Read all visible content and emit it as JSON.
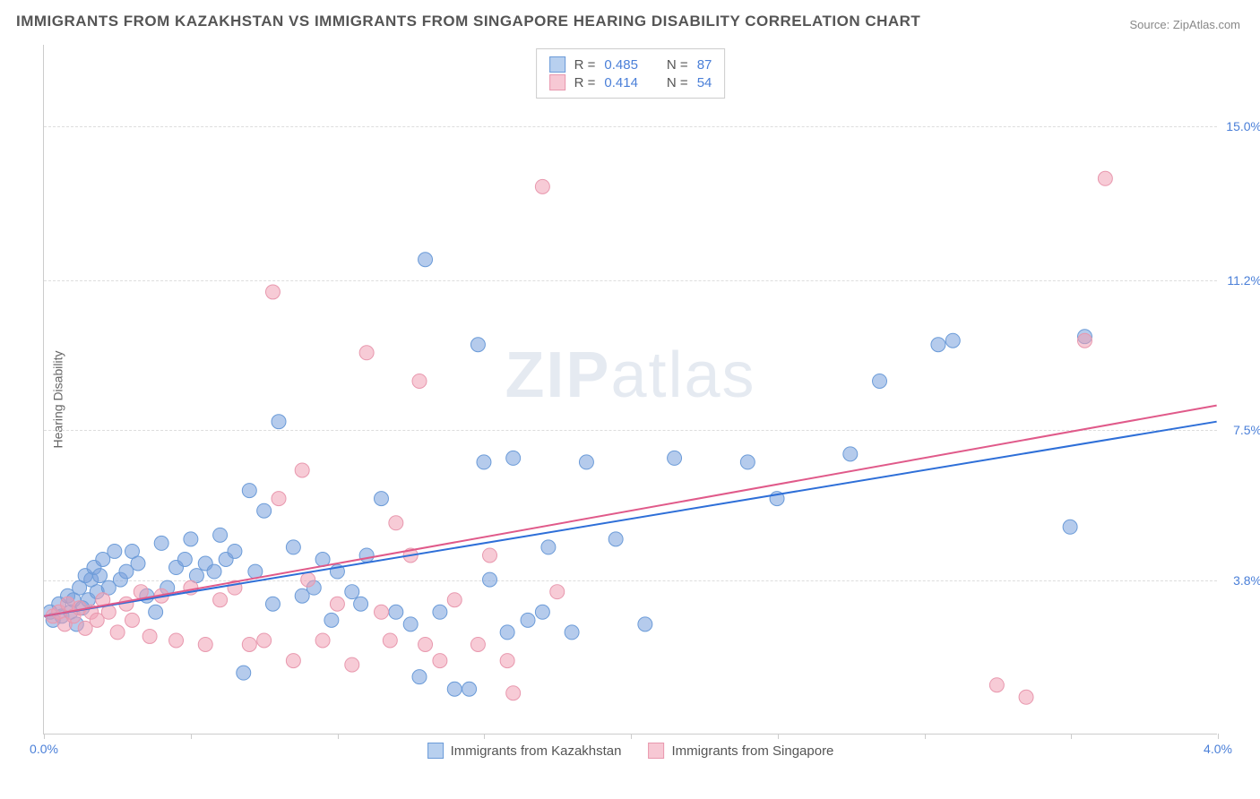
{
  "title": "IMMIGRANTS FROM KAZAKHSTAN VS IMMIGRANTS FROM SINGAPORE HEARING DISABILITY CORRELATION CHART",
  "source": "Source: ZipAtlas.com",
  "watermark_bold": "ZIP",
  "watermark_rest": "atlas",
  "ylabel": "Hearing Disability",
  "xlim": [
    0.0,
    4.0
  ],
  "ylim": [
    0.0,
    17.0
  ],
  "xtick_labels": {
    "left": "0.0%",
    "right": "4.0%"
  },
  "xtick_positions": [
    0.0,
    0.5,
    1.0,
    1.5,
    2.0,
    2.5,
    3.0,
    3.5,
    4.0
  ],
  "ytick_labels": [
    "3.8%",
    "7.5%",
    "11.2%",
    "15.0%"
  ],
  "ytick_values": [
    3.8,
    7.5,
    11.2,
    15.0
  ],
  "grid_color": "#dddddd",
  "axis_color": "#cccccc",
  "series": [
    {
      "name": "Immigrants from Kazakhstan",
      "color_fill": "rgba(120,160,220,0.55)",
      "color_stroke": "#6b9bd8",
      "swatch_fill": "#b8d0ef",
      "swatch_border": "#6b9bd8",
      "line_color": "#2e6fd8",
      "R_label": "R =",
      "R": "0.485",
      "N_label": "N =",
      "N": "87",
      "trend": {
        "x1": 0.0,
        "y1": 2.9,
        "x2": 4.0,
        "y2": 7.7
      },
      "points": [
        [
          0.02,
          3.0
        ],
        [
          0.03,
          2.8
        ],
        [
          0.05,
          3.2
        ],
        [
          0.06,
          2.9
        ],
        [
          0.08,
          3.4
        ],
        [
          0.09,
          3.0
        ],
        [
          0.1,
          3.3
        ],
        [
          0.11,
          2.7
        ],
        [
          0.12,
          3.6
        ],
        [
          0.13,
          3.1
        ],
        [
          0.14,
          3.9
        ],
        [
          0.15,
          3.3
        ],
        [
          0.16,
          3.8
        ],
        [
          0.17,
          4.1
        ],
        [
          0.18,
          3.5
        ],
        [
          0.19,
          3.9
        ],
        [
          0.2,
          4.3
        ],
        [
          0.22,
          3.6
        ],
        [
          0.24,
          4.5
        ],
        [
          0.26,
          3.8
        ],
        [
          0.28,
          4.0
        ],
        [
          0.3,
          4.5
        ],
        [
          0.32,
          4.2
        ],
        [
          0.35,
          3.4
        ],
        [
          0.38,
          3.0
        ],
        [
          0.4,
          4.7
        ],
        [
          0.42,
          3.6
        ],
        [
          0.45,
          4.1
        ],
        [
          0.48,
          4.3
        ],
        [
          0.5,
          4.8
        ],
        [
          0.52,
          3.9
        ],
        [
          0.55,
          4.2
        ],
        [
          0.58,
          4.0
        ],
        [
          0.6,
          4.9
        ],
        [
          0.62,
          4.3
        ],
        [
          0.65,
          4.5
        ],
        [
          0.68,
          1.5
        ],
        [
          0.7,
          6.0
        ],
        [
          0.72,
          4.0
        ],
        [
          0.75,
          5.5
        ],
        [
          0.78,
          3.2
        ],
        [
          0.8,
          7.7
        ],
        [
          0.85,
          4.6
        ],
        [
          0.88,
          3.4
        ],
        [
          0.92,
          3.6
        ],
        [
          0.95,
          4.3
        ],
        [
          0.98,
          2.8
        ],
        [
          1.0,
          4.0
        ],
        [
          1.05,
          3.5
        ],
        [
          1.08,
          3.2
        ],
        [
          1.1,
          4.4
        ],
        [
          1.15,
          5.8
        ],
        [
          1.2,
          3.0
        ],
        [
          1.25,
          2.7
        ],
        [
          1.28,
          1.4
        ],
        [
          1.3,
          11.7
        ],
        [
          1.35,
          3.0
        ],
        [
          1.4,
          1.1
        ],
        [
          1.45,
          1.1
        ],
        [
          1.48,
          9.6
        ],
        [
          1.5,
          6.7
        ],
        [
          1.52,
          3.8
        ],
        [
          1.58,
          2.5
        ],
        [
          1.6,
          6.8
        ],
        [
          1.65,
          2.8
        ],
        [
          1.7,
          3.0
        ],
        [
          1.72,
          4.6
        ],
        [
          1.8,
          2.5
        ],
        [
          1.85,
          6.7
        ],
        [
          1.95,
          4.8
        ],
        [
          2.05,
          2.7
        ],
        [
          2.15,
          6.8
        ],
        [
          2.4,
          6.7
        ],
        [
          2.5,
          5.8
        ],
        [
          2.75,
          6.9
        ],
        [
          2.85,
          8.7
        ],
        [
          3.05,
          9.6
        ],
        [
          3.1,
          9.7
        ],
        [
          3.5,
          5.1
        ],
        [
          3.55,
          9.8
        ]
      ]
    },
    {
      "name": "Immigrants from Singapore",
      "color_fill": "rgba(240,160,180,0.55)",
      "color_stroke": "#e898ae",
      "swatch_fill": "#f7c8d4",
      "swatch_border": "#e898ae",
      "line_color": "#e05a8a",
      "R_label": "R =",
      "R": "0.414",
      "N_label": "N =",
      "N": "54",
      "trend": {
        "x1": 0.0,
        "y1": 2.9,
        "x2": 4.0,
        "y2": 8.1
      },
      "points": [
        [
          0.03,
          2.9
        ],
        [
          0.05,
          3.0
        ],
        [
          0.07,
          2.7
        ],
        [
          0.08,
          3.2
        ],
        [
          0.1,
          2.9
        ],
        [
          0.12,
          3.1
        ],
        [
          0.14,
          2.6
        ],
        [
          0.16,
          3.0
        ],
        [
          0.18,
          2.8
        ],
        [
          0.2,
          3.3
        ],
        [
          0.22,
          3.0
        ],
        [
          0.25,
          2.5
        ],
        [
          0.28,
          3.2
        ],
        [
          0.3,
          2.8
        ],
        [
          0.33,
          3.5
        ],
        [
          0.36,
          2.4
        ],
        [
          0.4,
          3.4
        ],
        [
          0.45,
          2.3
        ],
        [
          0.5,
          3.6
        ],
        [
          0.55,
          2.2
        ],
        [
          0.6,
          3.3
        ],
        [
          0.65,
          3.6
        ],
        [
          0.7,
          2.2
        ],
        [
          0.75,
          2.3
        ],
        [
          0.78,
          10.9
        ],
        [
          0.8,
          5.8
        ],
        [
          0.85,
          1.8
        ],
        [
          0.88,
          6.5
        ],
        [
          0.9,
          3.8
        ],
        [
          0.95,
          2.3
        ],
        [
          1.0,
          3.2
        ],
        [
          1.05,
          1.7
        ],
        [
          1.1,
          9.4
        ],
        [
          1.15,
          3.0
        ],
        [
          1.18,
          2.3
        ],
        [
          1.2,
          5.2
        ],
        [
          1.25,
          4.4
        ],
        [
          1.28,
          8.7
        ],
        [
          1.3,
          2.2
        ],
        [
          1.35,
          1.8
        ],
        [
          1.4,
          3.3
        ],
        [
          1.48,
          2.2
        ],
        [
          1.52,
          4.4
        ],
        [
          1.58,
          1.8
        ],
        [
          1.6,
          1.0
        ],
        [
          1.7,
          13.5
        ],
        [
          1.75,
          3.5
        ],
        [
          3.25,
          1.2
        ],
        [
          3.35,
          0.9
        ],
        [
          3.55,
          9.7
        ],
        [
          3.62,
          13.7
        ]
      ]
    }
  ],
  "marker_radius": 8,
  "marker_stroke_width": 1,
  "line_width": 2,
  "plot_bg": "#ffffff"
}
